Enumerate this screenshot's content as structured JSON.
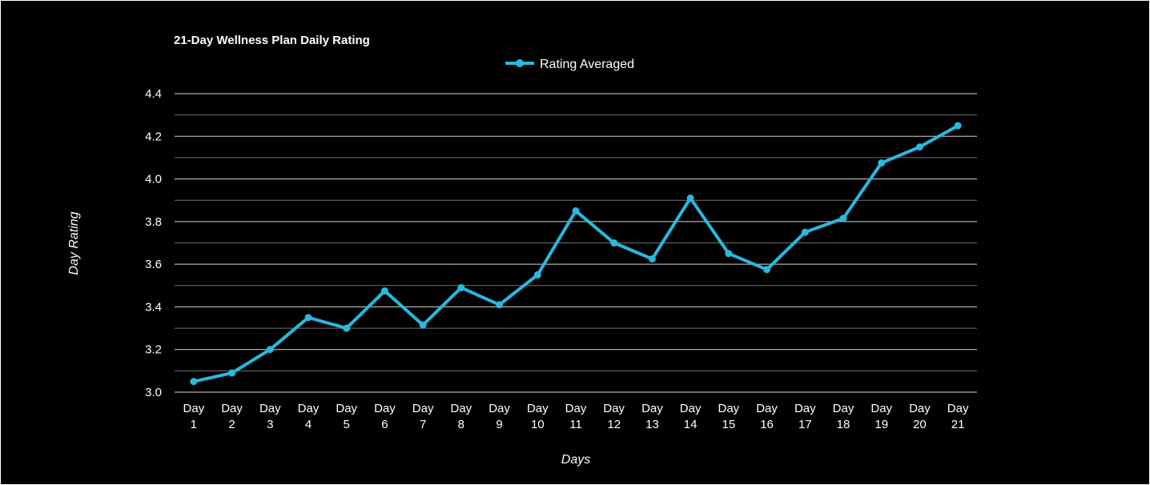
{
  "chart_data": {
    "type": "line",
    "title": "21-Day Wellness Plan Daily Rating",
    "xlabel": "Days",
    "ylabel": "Day Rating",
    "categories": [
      [
        "Day",
        "1"
      ],
      [
        "Day",
        "2"
      ],
      [
        "Day",
        "3"
      ],
      [
        "Day",
        "4"
      ],
      [
        "Day",
        "5"
      ],
      [
        "Day",
        "6"
      ],
      [
        "Day",
        "7"
      ],
      [
        "Day",
        "8"
      ],
      [
        "Day",
        "9"
      ],
      [
        "Day",
        "10"
      ],
      [
        "Day",
        "11"
      ],
      [
        "Day",
        "12"
      ],
      [
        "Day",
        "13"
      ],
      [
        "Day",
        "14"
      ],
      [
        "Day",
        "15"
      ],
      [
        "Day",
        "16"
      ],
      [
        "Day",
        "17"
      ],
      [
        "Day",
        "18"
      ],
      [
        "Day",
        "19"
      ],
      [
        "Day",
        "20"
      ],
      [
        "Day",
        "21"
      ]
    ],
    "series": [
      {
        "name": "Rating Averaged",
        "color": "#2ab8dd",
        "values": [
          3.05,
          3.09,
          3.2,
          3.35,
          3.3,
          3.475,
          3.315,
          3.49,
          3.41,
          3.55,
          3.85,
          3.7,
          3.625,
          3.91,
          3.65,
          3.575,
          3.75,
          3.815,
          4.075,
          4.15,
          4.25
        ]
      }
    ],
    "ylim": [
      3.0,
      4.4
    ],
    "yticks": [
      "3.0",
      "3.2",
      "3.4",
      "3.6",
      "3.8",
      "4.0",
      "4.2",
      "4.4"
    ],
    "grid": true,
    "legend": "top-center",
    "background": "#000000",
    "gridline_color": "#ffffff",
    "text_color": "#ffffff"
  }
}
